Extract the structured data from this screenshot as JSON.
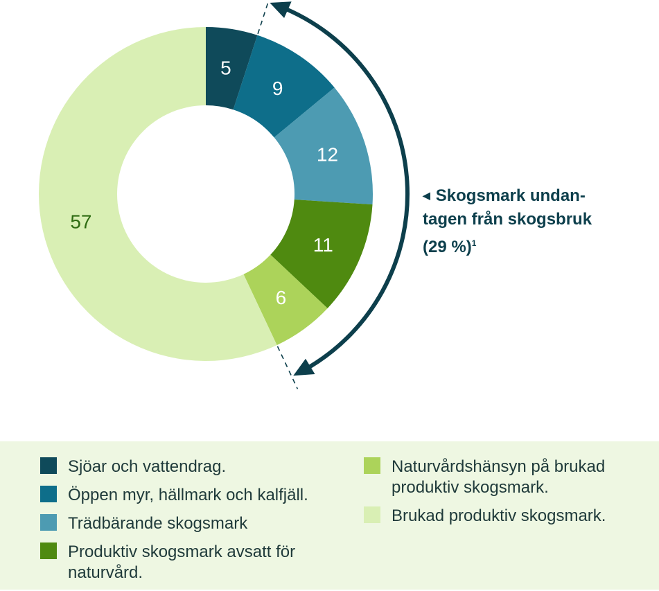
{
  "chart_data": {
    "type": "pie",
    "donut": true,
    "start_angle_deg": 0,
    "direction": "clockwise",
    "slices": [
      {
        "value": 5,
        "label": "5",
        "name": "Sjöar och vattendrag.",
        "color": "#0f4a5a",
        "label_color": "#ffffff"
      },
      {
        "value": 9,
        "label": "9",
        "name": "Öppen myr, hällmark och kalfjäll.",
        "color": "#0e6e8a",
        "label_color": "#ffffff"
      },
      {
        "value": 12,
        "label": "12",
        "name": "Trädbärande skogsmark",
        "color": "#4d9bb2",
        "label_color": "#ffffff"
      },
      {
        "value": 11,
        "label": "11",
        "name": "Produktiv skogsmark avsatt för naturvård.",
        "color": "#4f8a10",
        "label_color": "#ffffff"
      },
      {
        "value": 6,
        "label": "6",
        "name": "Naturvårdshänsyn på brukad produktiv skogsmark.",
        "color": "#acd35a",
        "label_color": "#ffffff"
      },
      {
        "value": 57,
        "label": "57",
        "name": "Brukad produktiv skogsmark.",
        "color": "#d9efb4",
        "label_color": "#2e6b12"
      }
    ],
    "annotation": {
      "text_lines": [
        "Skogsmark undan-",
        "tagen från skogsbruk",
        "(29 %)"
      ],
      "footnote": "1",
      "percent": 29,
      "color": "#0d3f4c"
    }
  },
  "legend": {
    "left": [
      {
        "text_lines": [
          "Sjöar och vattendrag."
        ],
        "color": "#0f4a5a"
      },
      {
        "text_lines": [
          "Öppen myr, hällmark och kalfjäll."
        ],
        "color": "#0e6e8a"
      },
      {
        "text_lines": [
          "Trädbärande skogsmark"
        ],
        "color": "#4d9bb2"
      },
      {
        "text_lines": [
          "Produktiv skogsmark avsatt för",
          "naturvård."
        ],
        "color": "#4f8a10"
      }
    ],
    "right": [
      {
        "text_lines": [
          "Naturvårdshänsyn på brukad",
          "produktiv skogsmark."
        ],
        "color": "#acd35a"
      },
      {
        "text_lines": [
          "Brukad produktiv skogsmark."
        ],
        "color": "#d9efb4"
      }
    ]
  }
}
